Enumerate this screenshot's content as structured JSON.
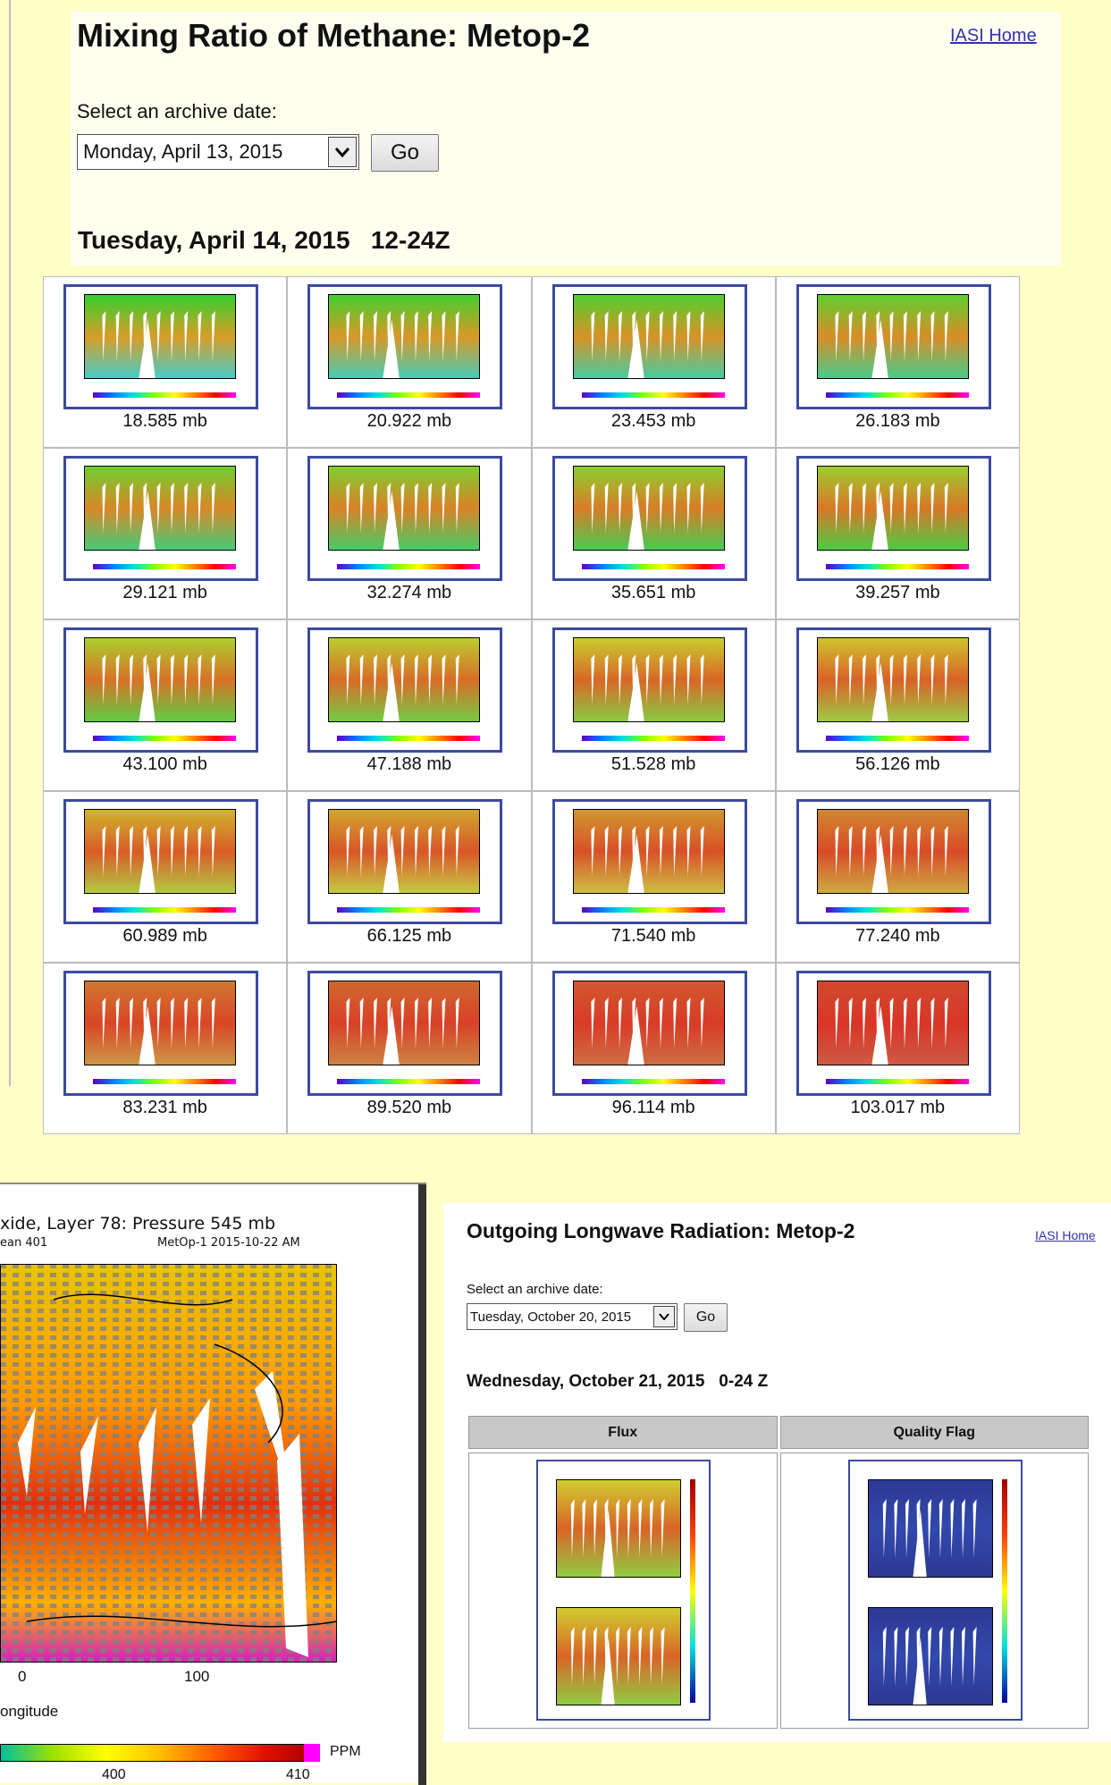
{
  "methane_page": {
    "title": "Mixing Ratio of Methane: Metop-2",
    "home_link": "IASI Home",
    "select_label": "Select an archive date:",
    "selected_date": "Monday, April 13, 2015",
    "go_button": "Go",
    "date_heading": "Tuesday, April 14, 2015   12-24Z",
    "thumbnail_labels": [
      "18.585 mb",
      "20.922 mb",
      "23.453 mb",
      "26.183 mb",
      "29.121 mb",
      "32.274 mb",
      "35.651 mb",
      "39.257 mb",
      "43.100 mb",
      "47.188 mb",
      "51.528 mb",
      "56.126 mb",
      "60.989 mb",
      "66.125 mb",
      "71.540 mb",
      "77.240 mb",
      "83.231 mb",
      "89.520 mb",
      "96.114 mb",
      "103.017 mb"
    ]
  },
  "co_plot": {
    "title": "xide, Layer 78: Pressure 545 mb",
    "mean": "ean 401",
    "satellite_time": "MetOp-1 2015-10-22 AM",
    "x_tick_labels": [
      "0",
      "100"
    ],
    "x_axis_label": "ongitude",
    "colorbar_unit": "PPM",
    "colorbar_tick_labels": [
      "400",
      "410"
    ]
  },
  "olr_page": {
    "title": "Outgoing Longwave Radiation: Metop-2",
    "home_link": "IASI Home",
    "select_label": "Select an archive date:",
    "selected_date": "Tuesday, October 20, 2015",
    "go_button": "Go",
    "date_heading": "Wednesday, October 21, 2015   0-24 Z",
    "columns": [
      "Flux",
      "Quality Flag"
    ]
  }
}
